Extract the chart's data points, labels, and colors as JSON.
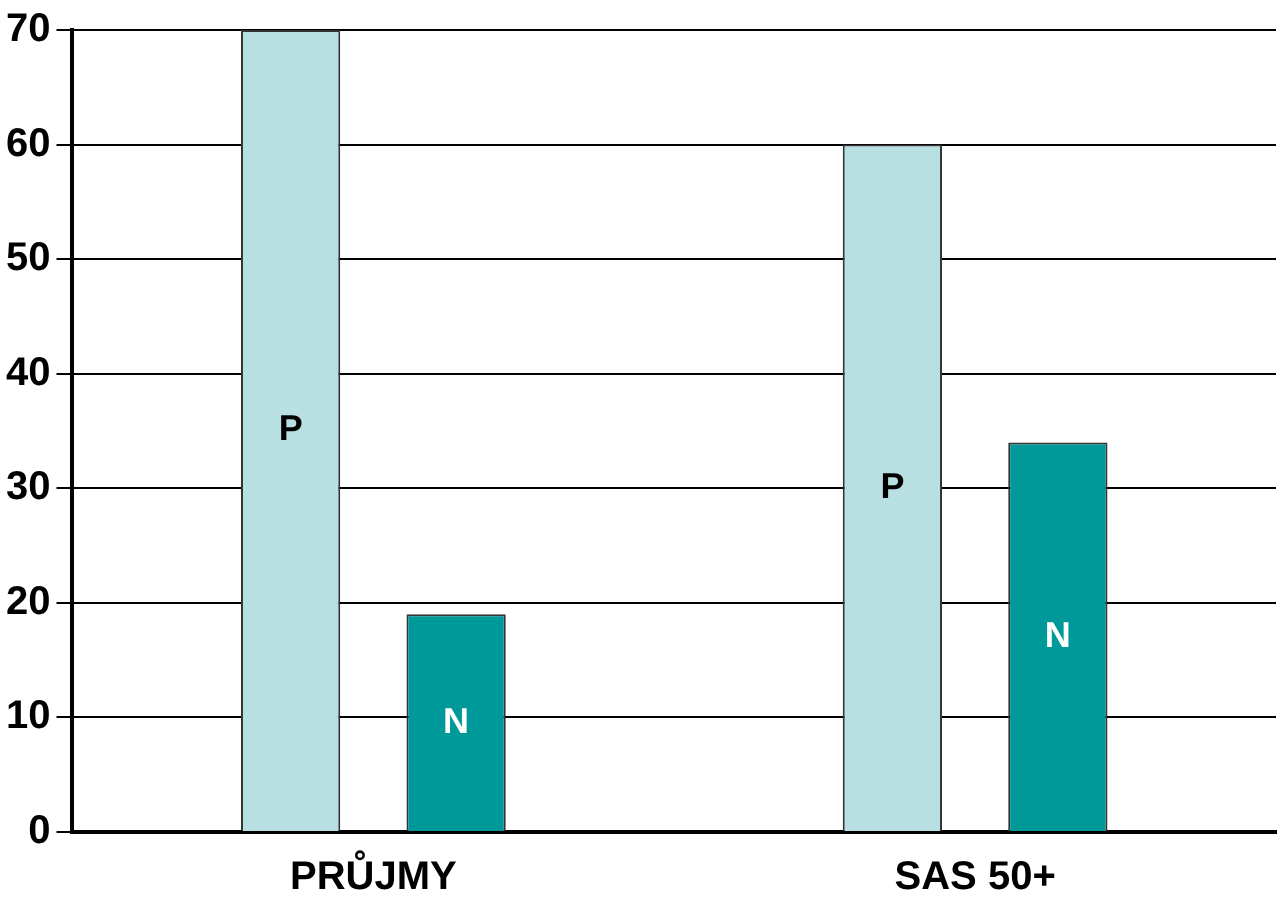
{
  "chart_data": {
    "type": "bar",
    "categories": [
      "PRŮJMY",
      "SAS 50+"
    ],
    "series": [
      {
        "name": "P",
        "color": "#b8e0e3",
        "values": [
          70,
          60
        ]
      },
      {
        "name": "N",
        "color": "#009999",
        "values": [
          19,
          34
        ]
      }
    ],
    "ylim": [
      0,
      70
    ],
    "yticks": [
      0,
      10,
      20,
      30,
      40,
      50,
      60,
      70
    ],
    "grid": "y",
    "legend": false
  }
}
